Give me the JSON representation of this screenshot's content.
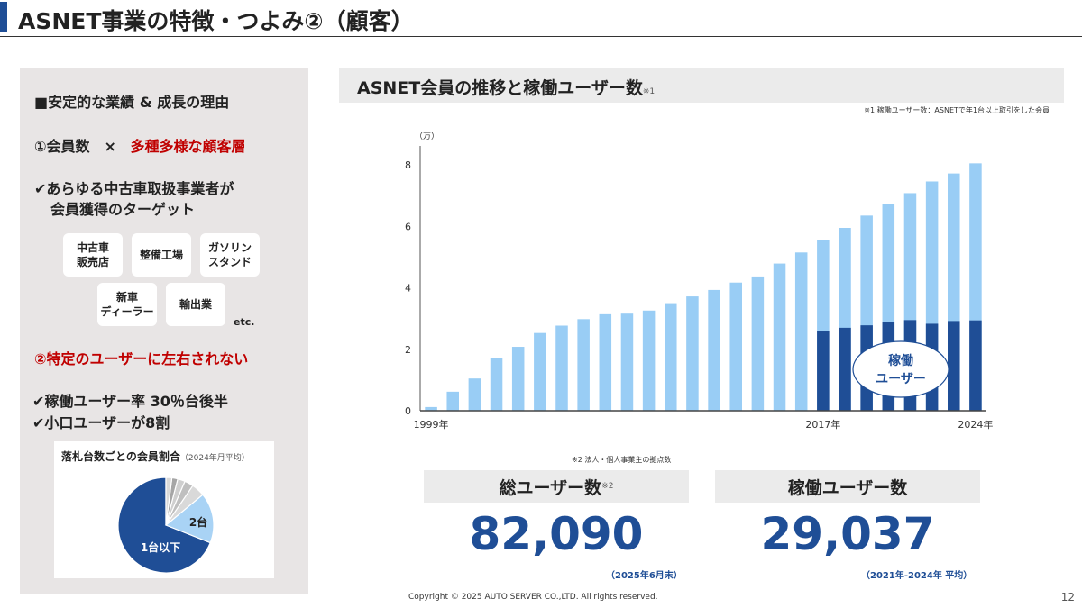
{
  "slide": {
    "title": "ASNET事業の特徴・つよみ②（顧客）",
    "page_number": "12",
    "copyright": "Copyright © 2025 AUTO SERVER CO.,LTD.  All rights reserved."
  },
  "left_panel": {
    "heading": "■安定的な業績 & 成長の理由",
    "point1_prefix": "①会員数　×",
    "point1_highlight": "多種多様な顧客層",
    "check1_line1": "✔あらゆる中古車取扱事業者が",
    "check1_line2": "会員獲得のターゲット",
    "chips": [
      "中古車\n販売店",
      "整備工場",
      "ガソリン\nスタンド",
      "新車\nディーラー",
      "輸出業"
    ],
    "etc": "etc.",
    "point2": "②特定のユーザーに左右されない",
    "check2": "✔稼働ユーザー率 30％台後半",
    "check3": "✔小口ユーザーが8割",
    "pie": {
      "title": "落札台数ごとの会員割合",
      "subtitle": "（2024年月平均）",
      "slices": [
        {
          "label": "1台以下",
          "color": "#1f4e96"
        },
        {
          "label": "2台",
          "color": "#a9d3f5"
        },
        {
          "label": "",
          "color": "#d9d9d9"
        },
        {
          "label": "",
          "color": "#bfbfbf"
        },
        {
          "label": "",
          "color": "#cfcfcf"
        },
        {
          "label": "",
          "color": "#a6a6a6"
        },
        {
          "label": "",
          "color": "#d9d9d9"
        }
      ]
    }
  },
  "chart": {
    "header": "ASNET会員の推移と稼働ユーザー数",
    "header_sup": "※1",
    "note1": "※1 稼働ユーザー数：ASNETで年1台以上取引をした会員",
    "note2": "※2 法人・個人事業主の拠点数",
    "bubble_line1": "稼働",
    "bubble_line2": "ユーザー",
    "colors": {
      "total": "#99cdf5",
      "active": "#1f4e96"
    }
  },
  "chart_data": {
    "type": "bar",
    "y_unit_label": "（万）",
    "ylim": [
      0,
      8.5
    ],
    "yticks": [
      0,
      2,
      4,
      6,
      8
    ],
    "x_tick_labels": [
      {
        "index": 0,
        "label": "1999年"
      },
      {
        "index": 18,
        "label": "2017年"
      },
      {
        "index": 25,
        "label": "2024年"
      }
    ],
    "series": [
      {
        "values": [
          0.12,
          0.62,
          1.05,
          1.7,
          2.08,
          2.53,
          2.77,
          2.98,
          3.14,
          3.16,
          3.26,
          3.5,
          3.72,
          3.93,
          4.17,
          4.37,
          4.79,
          5.15,
          5.55,
          5.95,
          6.35,
          6.73,
          7.08,
          7.46,
          7.72,
          8.05
        ]
      },
      {
        "values": [
          null,
          null,
          null,
          null,
          null,
          null,
          null,
          null,
          null,
          null,
          null,
          null,
          null,
          null,
          null,
          null,
          null,
          null,
          2.6,
          2.7,
          2.78,
          2.88,
          2.95,
          2.83,
          2.92,
          2.94
        ]
      }
    ]
  },
  "kpis": [
    {
      "label": "総ユーザー数",
      "label_sup": "※2",
      "value": "82,090",
      "note": "（2025年6月末）"
    },
    {
      "label": "稼働ユーザー数",
      "label_sup": "",
      "value": "29,037",
      "note": "（2021年-2024年 平均）"
    }
  ]
}
